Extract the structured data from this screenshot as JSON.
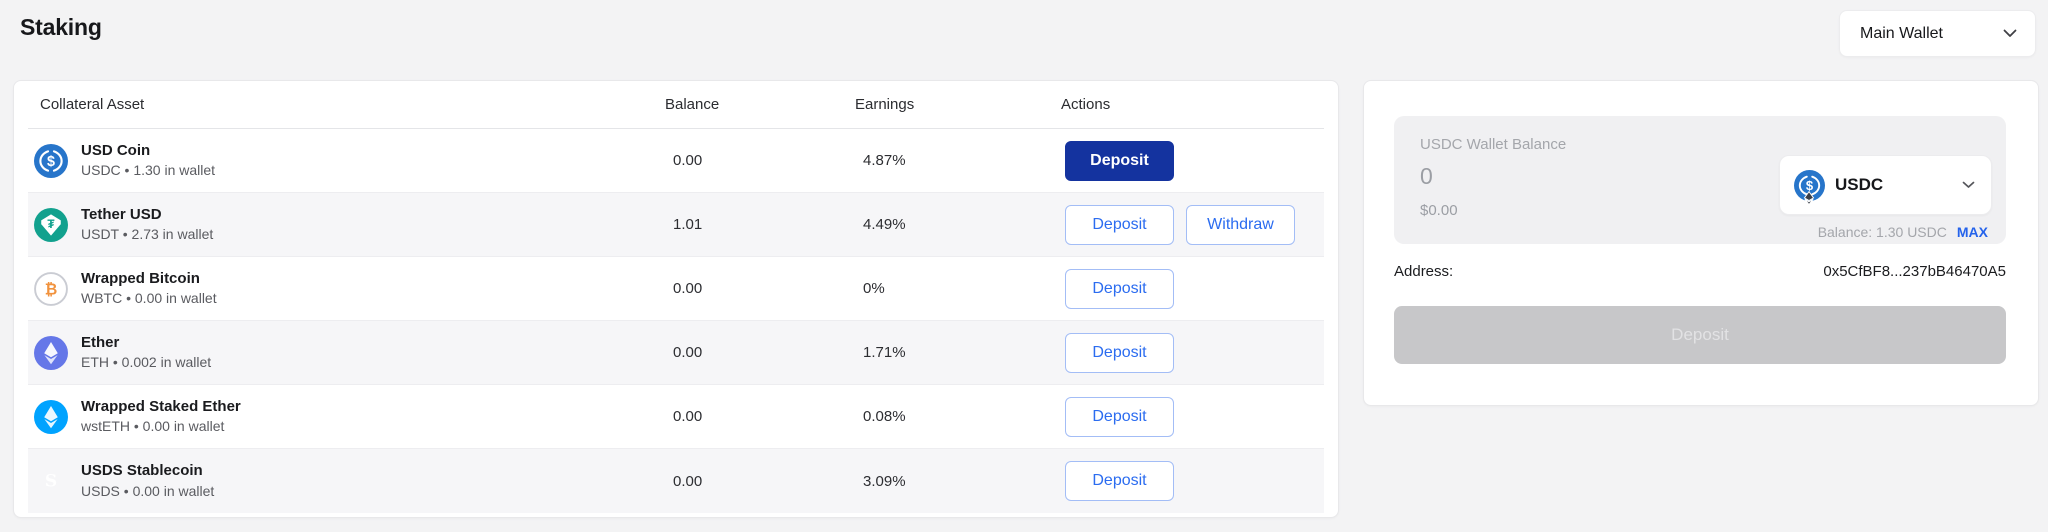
{
  "page": {
    "title": "Staking"
  },
  "wallet_selector": {
    "label": "Main Wallet"
  },
  "table": {
    "headers": [
      "Collateral Asset",
      "Balance",
      "Earnings",
      "Actions"
    ],
    "rows": [
      {
        "icon": "usdc",
        "name": "USD Coin",
        "sub": "USDC • 1.30 in wallet",
        "balance": "0.00",
        "earnings": "4.87%",
        "actions": [
          {
            "label": "Deposit",
            "style": "primary"
          }
        ]
      },
      {
        "icon": "usdt",
        "name": "Tether USD",
        "sub": "USDT • 2.73 in wallet",
        "balance": "1.01",
        "earnings": "4.49%",
        "actions": [
          {
            "label": "Deposit",
            "style": "outline"
          },
          {
            "label": "Withdraw",
            "style": "outline"
          }
        ]
      },
      {
        "icon": "wbtc",
        "name": "Wrapped Bitcoin",
        "sub": "WBTC • 0.00 in wallet",
        "balance": "0.00",
        "earnings": "0%",
        "actions": [
          {
            "label": "Deposit",
            "style": "outline"
          }
        ]
      },
      {
        "icon": "eth",
        "name": "Ether",
        "sub": "ETH • 0.002 in wallet",
        "balance": "0.00",
        "earnings": "1.71%",
        "actions": [
          {
            "label": "Deposit",
            "style": "outline"
          }
        ]
      },
      {
        "icon": "wsteth",
        "name": "Wrapped Staked Ether",
        "sub": "wstETH • 0.00 in wallet",
        "balance": "0.00",
        "earnings": "0.08%",
        "actions": [
          {
            "label": "Deposit",
            "style": "outline"
          }
        ]
      },
      {
        "icon": "usds",
        "name": "USDS Stablecoin",
        "sub": "USDS • 0.00 in wallet",
        "balance": "0.00",
        "earnings": "3.09%",
        "actions": [
          {
            "label": "Deposit",
            "style": "outline"
          }
        ]
      }
    ]
  },
  "deposit_panel": {
    "balance_label": "USDC Wallet Balance",
    "amount_value": "0",
    "fiat_value": "$0.00",
    "token": "USDC",
    "balance_line": "Balance: 1.30 USDC",
    "max_label": "MAX",
    "address_label": "Address:",
    "address_value": "0x5CfBF8...237bB46470A5",
    "submit_label": "Deposit"
  },
  "colors": {
    "primary_button": "#14339f",
    "outline_button_text": "#2b6cf0",
    "outline_button_border": "#a3bdf6",
    "max_link": "#2563eb",
    "usdc_blue": "#2775ca",
    "usdt_teal": "#12a18e",
    "wbtc_orange": "#f1923d",
    "eth_indigo": "#6577e8",
    "wsteth_blue": "#00a3ff",
    "usds_orange_top": "#ffc24a",
    "usds_orange_bottom": "#f4821f"
  }
}
